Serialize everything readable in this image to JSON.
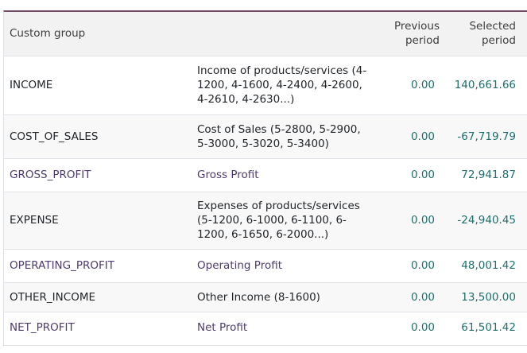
{
  "header": {
    "custom_group": "Custom group",
    "description": "",
    "previous_line1": "Previous",
    "previous_line2": "period",
    "selected_line1": "Selected",
    "selected_line2": "period"
  },
  "rows": [
    {
      "group": "INCOME",
      "description": "Income of products/services (4-1200, 4-1600, 4-2400, 4-2600, 4-2610, 4-2630...)",
      "previous": "0.00",
      "selected": "140,661.66",
      "overflow": "9"
    },
    {
      "group": "COST_OF_SALES",
      "description": "Cost of Sales (5-2800, 5-2900, 5-3000, 5-3020, 5-3400)",
      "previous": "0.00",
      "selected": "-67,719.79",
      "overflow": ""
    },
    {
      "group": "GROSS_PROFIT",
      "description": "Gross Profit",
      "previous": "0.00",
      "selected": "72,941.87",
      "overflow": "9"
    },
    {
      "group": "EXPENSE",
      "description": "Expenses of products/services (5-1200, 6-1000, 6-1100, 6-1200, 6-1650, 6-2000...)",
      "previous": "0.00",
      "selected": "-24,940.45",
      "overflow": "-"
    },
    {
      "group": "OPERATING_PROFIT",
      "description": "Operating Profit",
      "previous": "0.00",
      "selected": "48,001.42",
      "overflow": "7"
    },
    {
      "group": "OTHER_INCOME",
      "description": "Other Income (8-1600)",
      "previous": "0.00",
      "selected": "13,500.00",
      "overflow": "3"
    },
    {
      "group": "NET_PROFIT",
      "description": "Net Profit",
      "previous": "0.00",
      "selected": "61,501.42",
      "overflow": "10"
    }
  ]
}
